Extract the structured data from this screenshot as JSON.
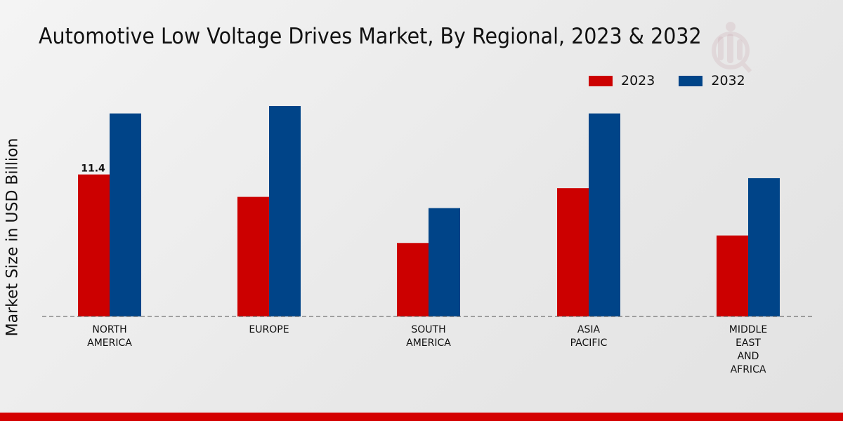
{
  "chart_data": {
    "type": "bar",
    "title": "Automotive Low Voltage Drives Market, By Regional, 2023 & 2032",
    "ylabel": "Market Size in USD Billion",
    "xlabel": "",
    "categories": [
      [
        "NORTH",
        "AMERICA"
      ],
      [
        "EUROPE"
      ],
      [
        "SOUTH",
        "AMERICA"
      ],
      [
        "ASIA",
        "PACIFIC"
      ],
      [
        "MIDDLE",
        "EAST",
        "AND",
        "AFRICA"
      ]
    ],
    "series": [
      {
        "name": "2023",
        "color": "#cc0000",
        "values": [
          11.4,
          9.6,
          5.9,
          10.3,
          6.5
        ]
      },
      {
        "name": "2032",
        "color": "#004488",
        "values": [
          16.3,
          16.9,
          8.7,
          16.3,
          11.1
        ]
      }
    ],
    "data_labels": [
      {
        "series": 0,
        "index": 0,
        "text": "11.4"
      }
    ],
    "ylim": [
      0,
      20
    ],
    "grid": false,
    "legend_position": "top-right"
  },
  "legend": {
    "item_2023": "2023",
    "item_2032": "2032"
  }
}
